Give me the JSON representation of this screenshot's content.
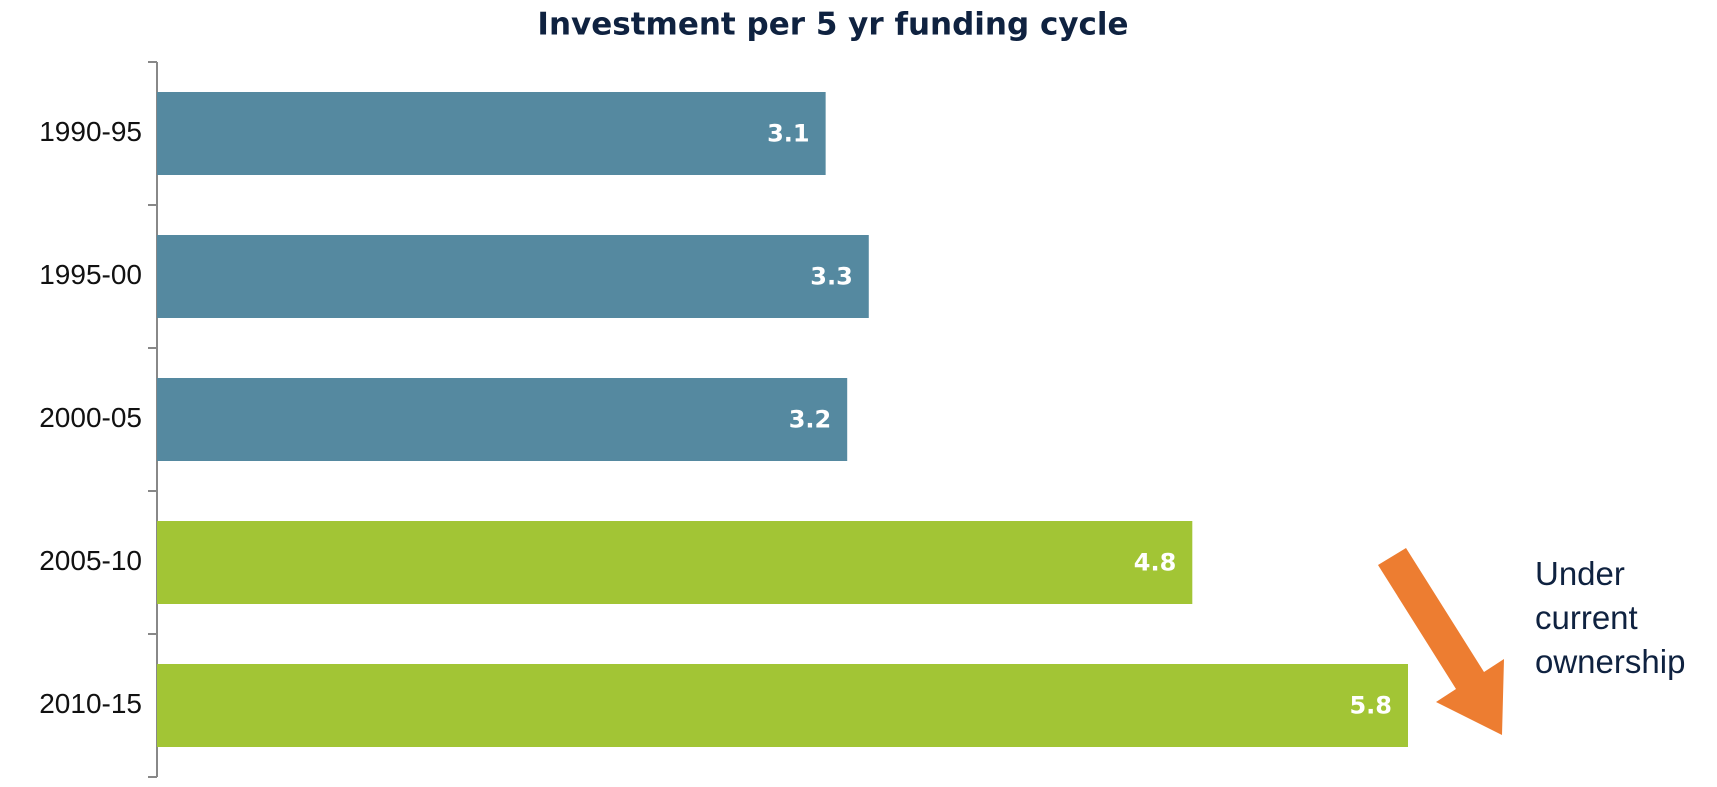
{
  "chart_data": {
    "type": "bar",
    "orientation": "horizontal",
    "title": "Investment per 5 yr funding cycle",
    "categories": [
      "1990-95",
      "1995-00",
      "2000-05",
      "2005-10",
      "2010-15"
    ],
    "values": [
      3.1,
      3.3,
      3.2,
      4.8,
      5.8
    ],
    "colors": [
      "#5589a0",
      "#5589a0",
      "#5589a0",
      "#a2c535",
      "#a2c535"
    ],
    "annotation": "Under current ownership",
    "annotation_color": "#ed7d31"
  }
}
